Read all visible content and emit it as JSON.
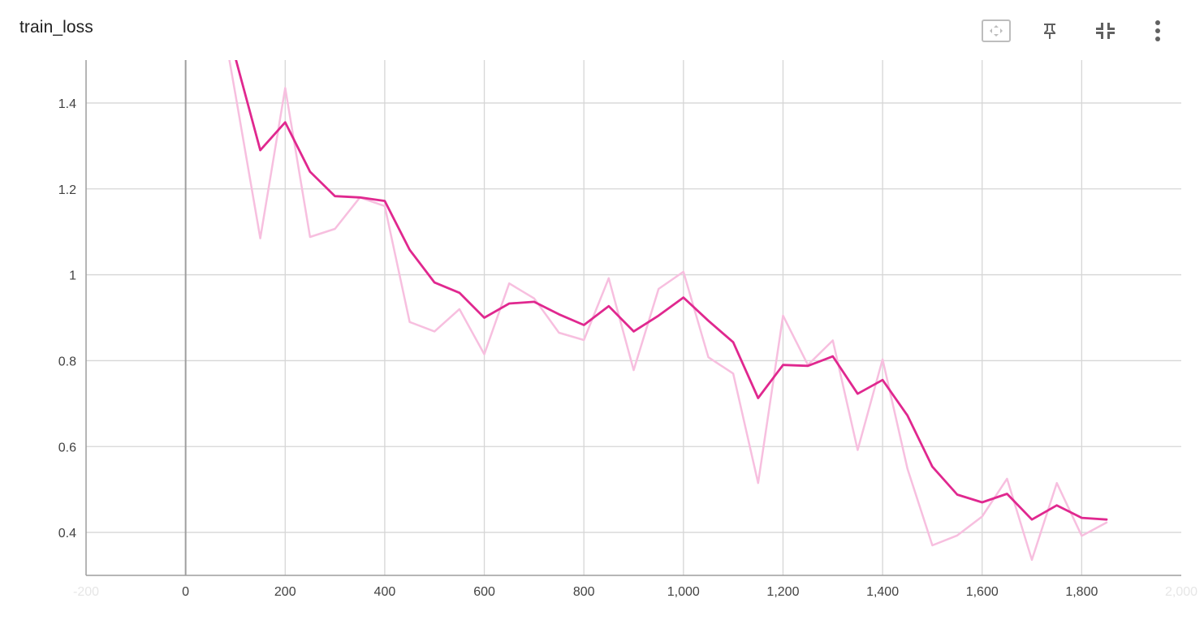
{
  "card": {
    "title": "train_loss",
    "toolbar": [
      {
        "name": "fit-domain-button",
        "icon": "fit-to-domain-icon"
      },
      {
        "name": "pin-button",
        "icon": "pin-icon"
      },
      {
        "name": "collapse-button",
        "icon": "collapse-icon"
      },
      {
        "name": "more-options-button",
        "icon": "more-vert-icon"
      }
    ]
  },
  "colors": {
    "smoothed": "#e0288f",
    "raw": "#f7bfdf",
    "grid": "#d6d6d6",
    "zero_axis": "#9e9e9e"
  },
  "chart_data": {
    "type": "line",
    "title": "train_loss",
    "xlabel": "",
    "ylabel": "",
    "xlim": [
      -200,
      2000
    ],
    "ylim": [
      0.3,
      1.5
    ],
    "x_ticks": [
      "-200",
      "0",
      "200",
      "400",
      "600",
      "800",
      "1,000",
      "1,200",
      "1,400",
      "1,600",
      "1,800",
      "2,000"
    ],
    "y_ticks": [
      "0.4",
      "0.6",
      "0.8",
      "1",
      "1.2",
      "1.4"
    ],
    "grid": true,
    "legend": "none",
    "x": [
      50,
      100,
      150,
      200,
      250,
      300,
      350,
      400,
      450,
      500,
      550,
      600,
      650,
      700,
      750,
      800,
      850,
      900,
      950,
      1000,
      1050,
      1100,
      1150,
      1200,
      1250,
      1300,
      1350,
      1400,
      1450,
      1500,
      1550,
      1600,
      1650,
      1700,
      1750,
      1800,
      1850
    ],
    "series": [
      {
        "values": [
          1.75,
          1.42,
          1.085,
          1.435,
          1.088,
          1.107,
          1.18,
          1.16,
          0.89,
          0.868,
          0.92,
          0.815,
          0.98,
          0.945,
          0.865,
          0.848,
          0.992,
          0.778,
          0.967,
          1.007,
          0.808,
          0.77,
          0.515,
          0.905,
          0.79,
          0.847,
          0.592,
          0.803,
          0.548,
          0.37,
          0.393,
          0.437,
          0.525,
          0.336,
          0.515,
          0.392,
          0.423
        ]
      },
      {
        "values": [
          1.72,
          1.505,
          1.29,
          1.355,
          1.24,
          1.183,
          1.18,
          1.172,
          1.058,
          0.982,
          0.958,
          0.9,
          0.933,
          0.937,
          0.908,
          0.883,
          0.927,
          0.868,
          0.905,
          0.947,
          0.893,
          0.843,
          0.713,
          0.79,
          0.788,
          0.81,
          0.723,
          0.755,
          0.672,
          0.553,
          0.488,
          0.47,
          0.49,
          0.43,
          0.463,
          0.434,
          0.43
        ]
      }
    ]
  }
}
